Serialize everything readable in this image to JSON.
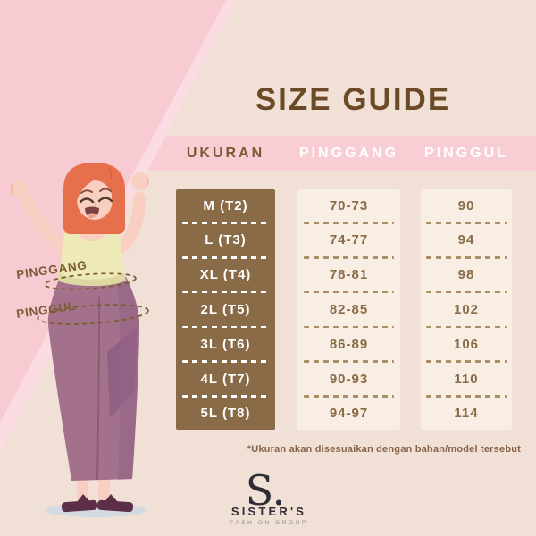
{
  "title": "SIZE GUIDE",
  "table": {
    "columns": [
      "UKURAN",
      "PINGGANG",
      "PINGGUL"
    ],
    "rows": [
      {
        "ukuran": "M (T2)",
        "pinggang": "70-73",
        "pinggul": "90"
      },
      {
        "ukuran": "L (T3)",
        "pinggang": "74-77",
        "pinggul": "94"
      },
      {
        "ukuran": "XL (T4)",
        "pinggang": "78-81",
        "pinggul": "98"
      },
      {
        "ukuran": "2L (T5)",
        "pinggang": "82-85",
        "pinggul": "102"
      },
      {
        "ukuran": "3L (T6)",
        "pinggang": "86-89",
        "pinggul": "106"
      },
      {
        "ukuran": "4L (T7)",
        "pinggang": "90-93",
        "pinggul": "110"
      },
      {
        "ukuran": "5L (T8)",
        "pinggang": "94-97",
        "pinggul": "114"
      }
    ]
  },
  "figure": {
    "waist_label": "PINGGANG",
    "hip_label": "PINGGUL"
  },
  "footnote": "*Ukuran akan disesuaikan dengan bahan/model tersebut",
  "logo": {
    "monogram": "S.",
    "name": "SISTER'S",
    "subtitle": "FASHION GROUP"
  },
  "colors": {
    "background_cream": "#f1e0d5",
    "pink_band": "#f8cdd4",
    "pink_triangle": "#f8cad2",
    "pink_triangle_light": "#fbdce3",
    "brown_column": "#8a6b47",
    "cream_column": "#f9eee3",
    "title_brown": "#6b4a27",
    "label_brown": "#7d5b35",
    "footnote_brown": "#876349",
    "logo_dark": "#2e2d36",
    "hair_orange": "#e7704c",
    "skin": "#f8cfc0",
    "top_yellow": "#eeeab7",
    "pants_mauve": "#a3718b"
  }
}
